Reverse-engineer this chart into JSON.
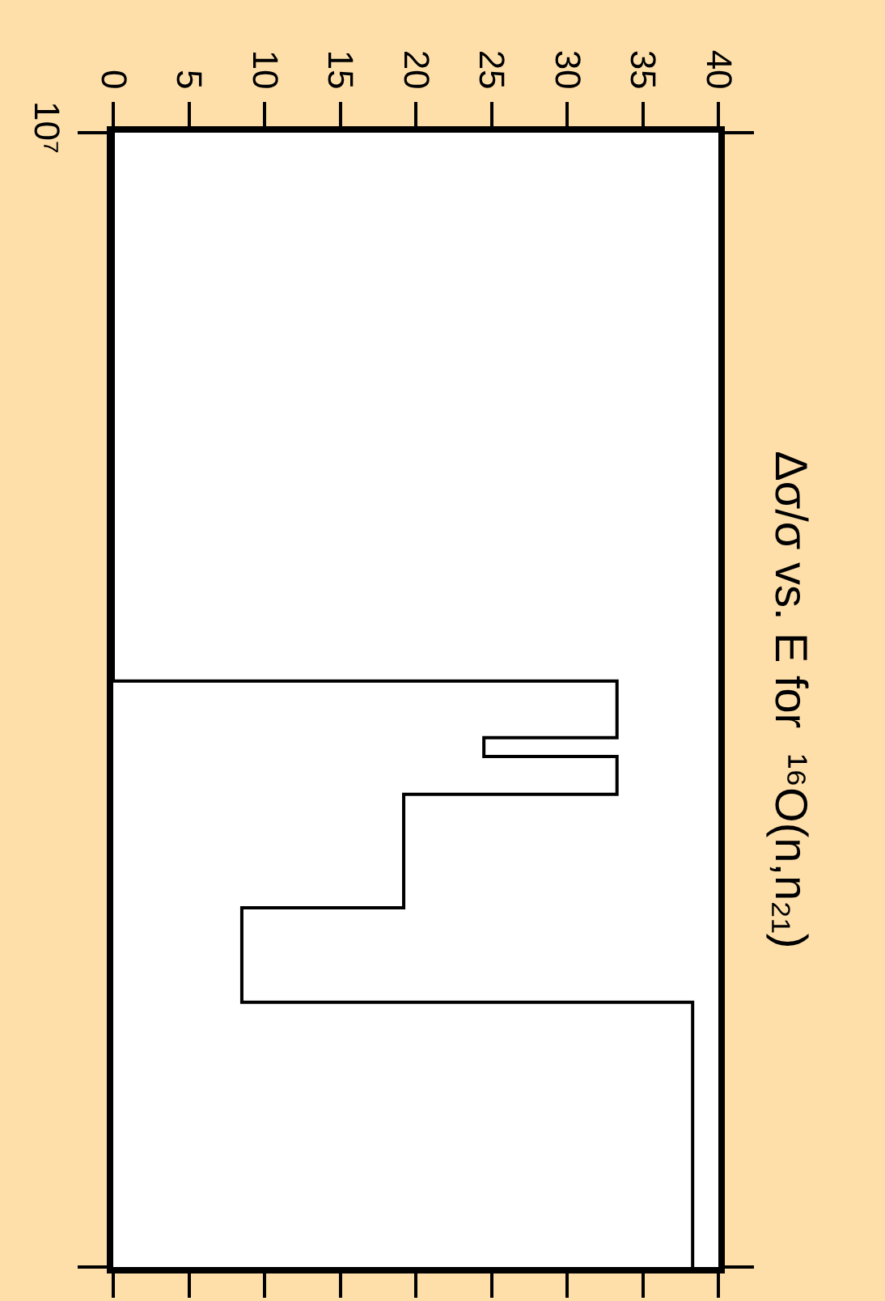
{
  "chart_data": {
    "type": "step",
    "title": "Δσ/σ vs. E for  ¹⁶O(n,n₂₁)",
    "categories": [
      "10⁷",
      null,
      null,
      null,
      null,
      null,
      null,
      null,
      null,
      null,
      null,
      null,
      null,
      null,
      null,
      null,
      null,
      null,
      null,
      null,
      null,
      null,
      null,
      null,
      null,
      null,
      null,
      null,
      null,
      null,
      null,
      null,
      null,
      null,
      null,
      null,
      null,
      null,
      null,
      null,
      null,
      null,
      null,
      null,
      null,
      null,
      null,
      null,
      null,
      null,
      null,
      null,
      null,
      null,
      null,
      null,
      null,
      null,
      null,
      null,
      null
    ],
    "values": [
      0,
      0,
      0,
      0,
      0,
      0,
      0,
      0,
      0,
      0,
      0,
      0,
      0,
      0,
      0,
      0,
      0,
      0,
      0,
      0,
      0,
      0,
      0,
      0,
      0,
      0,
      0,
      0,
      0,
      33.3,
      33.3,
      33.3,
      24.5,
      33.3,
      33.3,
      19.2,
      19.2,
      19.2,
      19.2,
      19.2,
      19.2,
      8.5,
      8.5,
      8.5,
      8.5,
      8.5,
      38.3,
      38.3,
      38.3,
      38.3,
      38.3,
      38.3,
      38.3,
      38.3,
      38.3,
      38.3,
      38.3,
      38.3,
      38.3,
      38.3,
      38.3
    ],
    "color": "#000000",
    "orientation": "horizontal",
    "xlim": [
      0,
      40
    ],
    "xticks": [
      0,
      5,
      10,
      15,
      20,
      25,
      30,
      35,
      40
    ]
  }
}
